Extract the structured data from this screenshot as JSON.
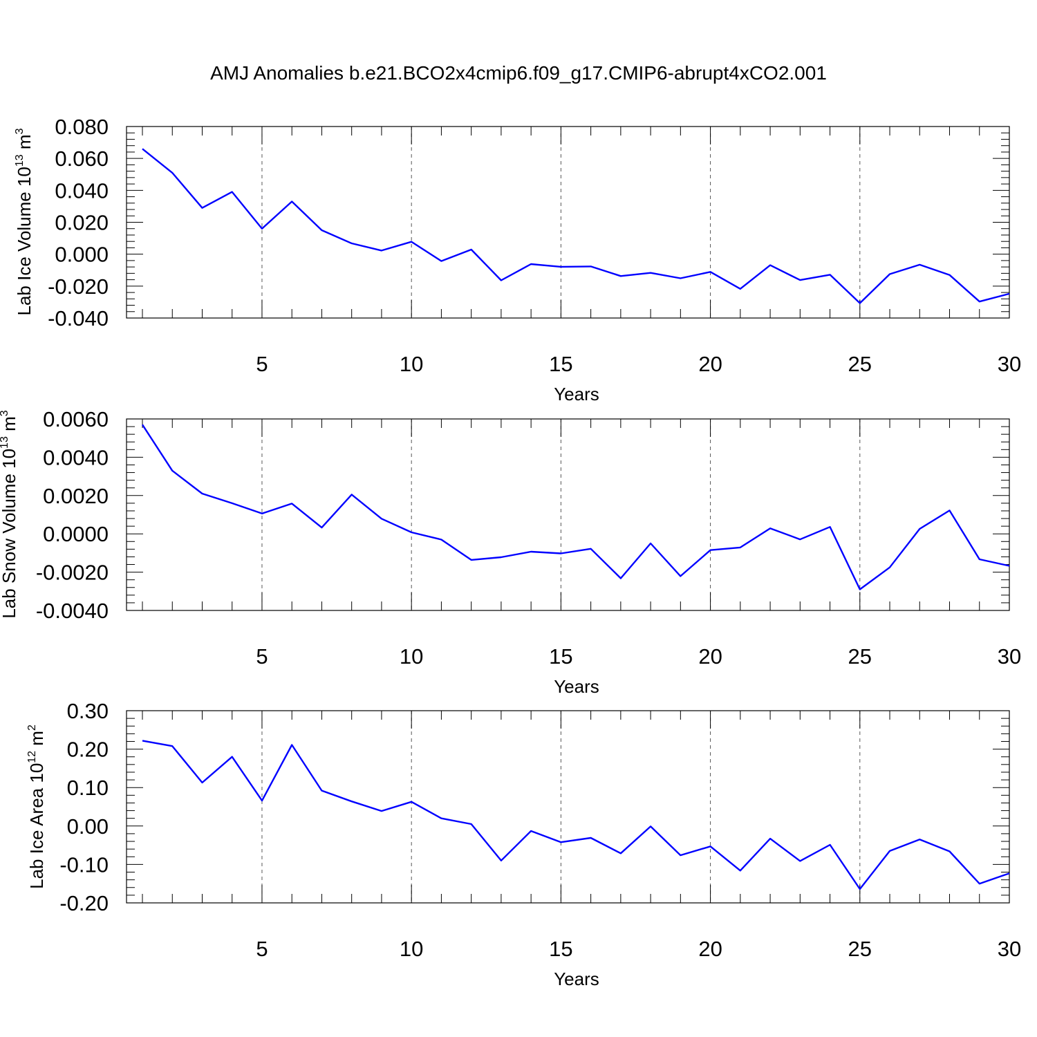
{
  "title": "AMJ Anomalies b.e21.BCO2x4cmip6.f09_g17.CMIP6-abrupt4xCO2.001",
  "line_color": "#0000ff",
  "chart_data": [
    {
      "type": "line",
      "ylabel": "Lab Ice Volume 10",
      "ylabel_exp": "13",
      "ylabel_unit": " m",
      "ylabel_unit_exp": "3",
      "xlabel": "Years",
      "xlim": [
        1,
        30
      ],
      "ylim": [
        -0.04,
        0.08
      ],
      "yticks": [
        -0.04,
        -0.02,
        0.0,
        0.02,
        0.04,
        0.06,
        0.08
      ],
      "ytick_labels": [
        "-0.040",
        "-0.020",
        "0.000",
        "0.020",
        "0.040",
        "0.060",
        "0.080"
      ],
      "xticks": [
        5,
        10,
        15,
        20,
        25,
        30
      ],
      "xtick_labels": [
        "5",
        "10",
        "15",
        "20",
        "25",
        "30"
      ],
      "grid": "dashed vertical at x ticks",
      "x": [
        1,
        2,
        3,
        4,
        5,
        6,
        7,
        8,
        9,
        10,
        11,
        12,
        13,
        14,
        15,
        16,
        17,
        18,
        19,
        20,
        21,
        22,
        23,
        24,
        25,
        26,
        27,
        28,
        29,
        30
      ],
      "values": [
        0.066,
        0.051,
        0.029,
        0.039,
        0.016,
        0.033,
        0.015,
        0.0068,
        0.0023,
        0.0078,
        -0.0043,
        0.0029,
        -0.0164,
        -0.0062,
        -0.0079,
        -0.0077,
        -0.0137,
        -0.0117,
        -0.0151,
        -0.0111,
        -0.0217,
        -0.0069,
        -0.0162,
        -0.0129,
        -0.0307,
        -0.0125,
        -0.0066,
        -0.013,
        -0.0297,
        -0.0248
      ]
    },
    {
      "type": "line",
      "ylabel": "Lab Snow Volume 10",
      "ylabel_exp": "13",
      "ylabel_unit": " m",
      "ylabel_unit_exp": "3",
      "xlabel": "Years",
      "xlim": [
        1,
        30
      ],
      "ylim": [
        -0.004,
        0.006
      ],
      "yticks": [
        -0.004,
        -0.002,
        0.0,
        0.002,
        0.004,
        0.006
      ],
      "ytick_labels": [
        "-0.0040",
        "-0.0020",
        "0.0000",
        "0.0020",
        "0.0040",
        "0.0060"
      ],
      "xticks": [
        5,
        10,
        15,
        20,
        25,
        30
      ],
      "xtick_labels": [
        "5",
        "10",
        "15",
        "20",
        "25",
        "30"
      ],
      "grid": "dashed vertical at x ticks",
      "x": [
        1,
        2,
        3,
        4,
        5,
        6,
        7,
        8,
        9,
        10,
        11,
        12,
        13,
        14,
        15,
        16,
        17,
        18,
        19,
        20,
        21,
        22,
        23,
        24,
        25,
        26,
        27,
        28,
        29,
        30
      ],
      "values": [
        0.0057,
        0.0033,
        0.0021,
        0.0016,
        0.00106,
        0.00158,
        0.00033,
        0.00205,
        0.00079,
        8e-05,
        -0.0003,
        -0.00136,
        -0.00122,
        -0.00093,
        -0.00102,
        -0.00078,
        -0.00232,
        -0.0005,
        -0.00221,
        -0.00085,
        -0.00071,
        0.00029,
        -0.00029,
        0.00036,
        -0.0029,
        -0.00175,
        0.00026,
        0.00122,
        -0.00133,
        -0.00167
      ]
    },
    {
      "type": "line",
      "ylabel": "Lab Ice Area 10",
      "ylabel_exp": "12",
      "ylabel_unit": " m",
      "ylabel_unit_exp": "2",
      "xlabel": "Years",
      "xlim": [
        1,
        30
      ],
      "ylim": [
        -0.2,
        0.3
      ],
      "yticks": [
        -0.2,
        -0.1,
        0.0,
        0.1,
        0.2,
        0.3
      ],
      "ytick_labels": [
        "-0.20",
        "-0.10",
        "0.00",
        "0.10",
        "0.20",
        "0.30"
      ],
      "xticks": [
        5,
        10,
        15,
        20,
        25,
        30
      ],
      "xtick_labels": [
        "5",
        "10",
        "15",
        "20",
        "25",
        "30"
      ],
      "grid": "dashed vertical at x ticks",
      "x": [
        1,
        2,
        3,
        4,
        5,
        6,
        7,
        8,
        9,
        10,
        11,
        12,
        13,
        14,
        15,
        16,
        17,
        18,
        19,
        20,
        21,
        22,
        23,
        24,
        25,
        26,
        27,
        28,
        29,
        30
      ],
      "values": [
        0.222,
        0.208,
        0.113,
        0.18,
        0.066,
        0.211,
        0.092,
        0.064,
        0.039,
        0.063,
        0.02,
        0.005,
        -0.09,
        -0.013,
        -0.042,
        -0.031,
        -0.071,
        -0.001,
        -0.076,
        -0.053,
        -0.116,
        -0.033,
        -0.091,
        -0.049,
        -0.164,
        -0.065,
        -0.035,
        -0.066,
        -0.15,
        -0.123
      ]
    }
  ]
}
